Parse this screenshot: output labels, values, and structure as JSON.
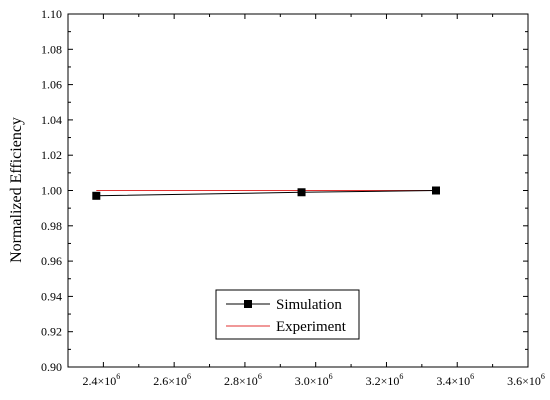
{
  "chart_data": {
    "type": "line",
    "ylabel": "Normalized Efficiency",
    "xlabel": "",
    "xlim": [
      2300000.0,
      3600000.0
    ],
    "ylim": [
      0.9,
      1.1
    ],
    "x_ticks": [
      {
        "value": 2400000.0,
        "mant": "2.4×10",
        "exp": "6"
      },
      {
        "value": 2600000.0,
        "mant": "2.6×10",
        "exp": "6"
      },
      {
        "value": 2800000.0,
        "mant": "2.8×10",
        "exp": "6"
      },
      {
        "value": 3000000.0,
        "mant": "3.0×10",
        "exp": "6"
      },
      {
        "value": 3200000.0,
        "mant": "3.2×10",
        "exp": "6"
      },
      {
        "value": 3400000.0,
        "mant": "3.4×10",
        "exp": "6"
      },
      {
        "value": 3600000.0,
        "mant": "3.6×10",
        "exp": "6"
      }
    ],
    "y_ticks": [
      "0.90",
      "0.92",
      "0.94",
      "0.96",
      "0.98",
      "1.00",
      "1.02",
      "1.04",
      "1.06",
      "1.08",
      "1.10"
    ],
    "legend_position": "bottom-center",
    "series": [
      {
        "name": "Simulation",
        "color": "#000000",
        "marker": "square",
        "x": [
          2380000.0,
          2960000.0,
          3340000.0
        ],
        "y": [
          0.997,
          0.999,
          1.0
        ]
      },
      {
        "name": "Experiment",
        "color": "#e03030",
        "marker": "none",
        "x": [
          2380000.0,
          2960000.0,
          3340000.0
        ],
        "y": [
          1.0,
          1.0,
          1.0
        ]
      }
    ]
  }
}
